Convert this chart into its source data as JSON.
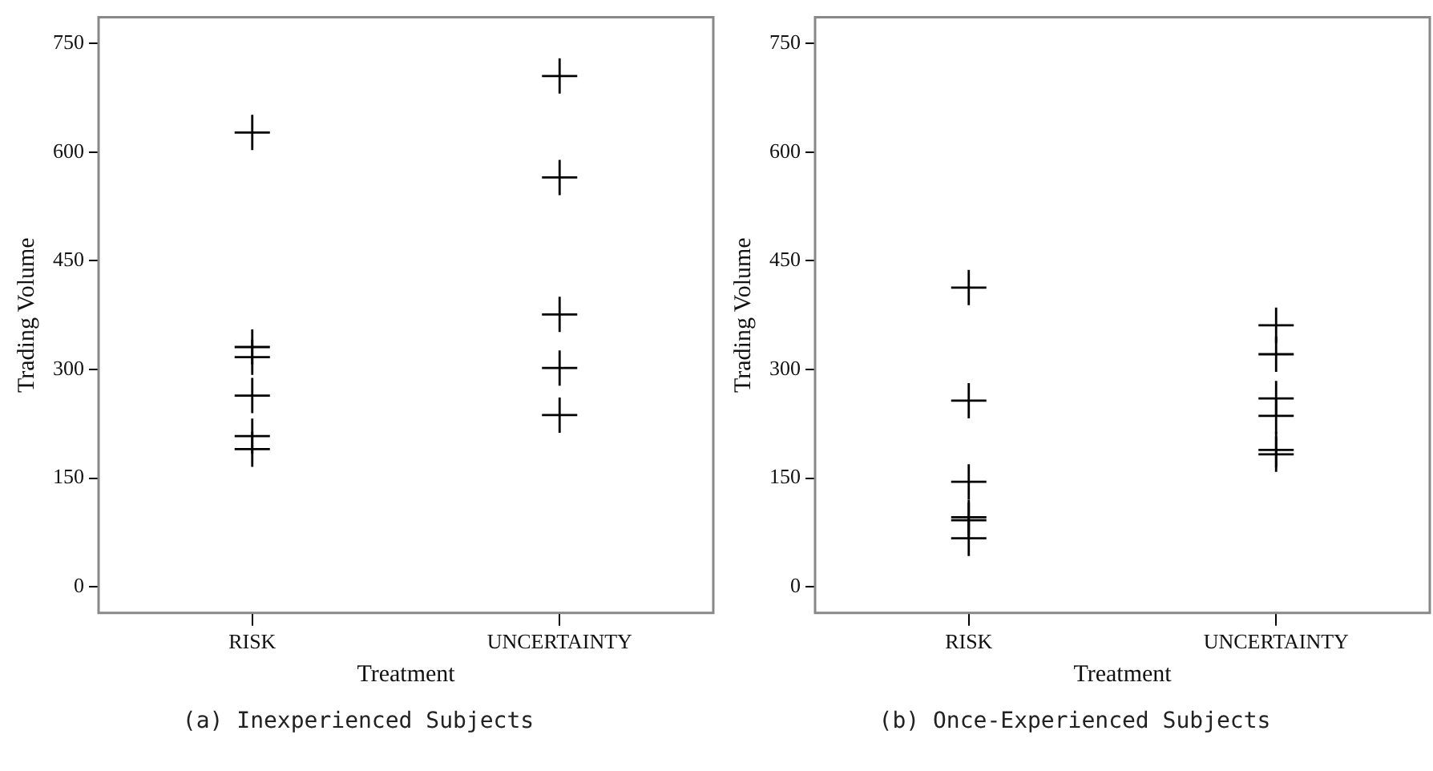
{
  "chart_data": [
    {
      "type": "scatter",
      "categories": [
        "RISK",
        "UNCERTAINTY"
      ],
      "xlabel": "Treatment",
      "ylabel": "Trading Volume",
      "ylim": [
        -36,
        786
      ],
      "yticks": [
        0,
        150,
        300,
        450,
        600,
        750
      ],
      "grid": false,
      "legend": false,
      "marker": "cross",
      "annotations": [
        "(a) Inexperienced Subjects"
      ],
      "series": [
        {
          "color": "#000000",
          "x": [
            "RISK",
            "RISK",
            "RISK",
            "RISK",
            "RISK",
            "RISK",
            "UNCERTAINTY",
            "UNCERTAINTY",
            "UNCERTAINTY",
            "UNCERTAINTY",
            "UNCERTAINTY"
          ],
          "values": [
            627,
            331,
            317,
            264,
            208,
            190,
            705,
            565,
            376,
            302,
            237
          ]
        }
      ]
    },
    {
      "type": "scatter",
      "categories": [
        "RISK",
        "UNCERTAINTY"
      ],
      "xlabel": "Treatment",
      "ylabel": "Trading Volume",
      "ylim": [
        -36,
        786
      ],
      "yticks": [
        0,
        150,
        300,
        450,
        600,
        750
      ],
      "grid": false,
      "legend": false,
      "marker": "cross",
      "annotations": [
        "(b) Once-Experienced Subjects"
      ],
      "series": [
        {
          "color": "#000000",
          "x": [
            "RISK",
            "RISK",
            "RISK",
            "RISK",
            "RISK",
            "RISK",
            "UNCERTAINTY",
            "UNCERTAINTY",
            "UNCERTAINTY",
            "UNCERTAINTY",
            "UNCERTAINTY",
            "UNCERTAINTY"
          ],
          "values": [
            413,
            257,
            145,
            96,
            92,
            67,
            361,
            321,
            260,
            236,
            189,
            183
          ]
        }
      ]
    }
  ]
}
